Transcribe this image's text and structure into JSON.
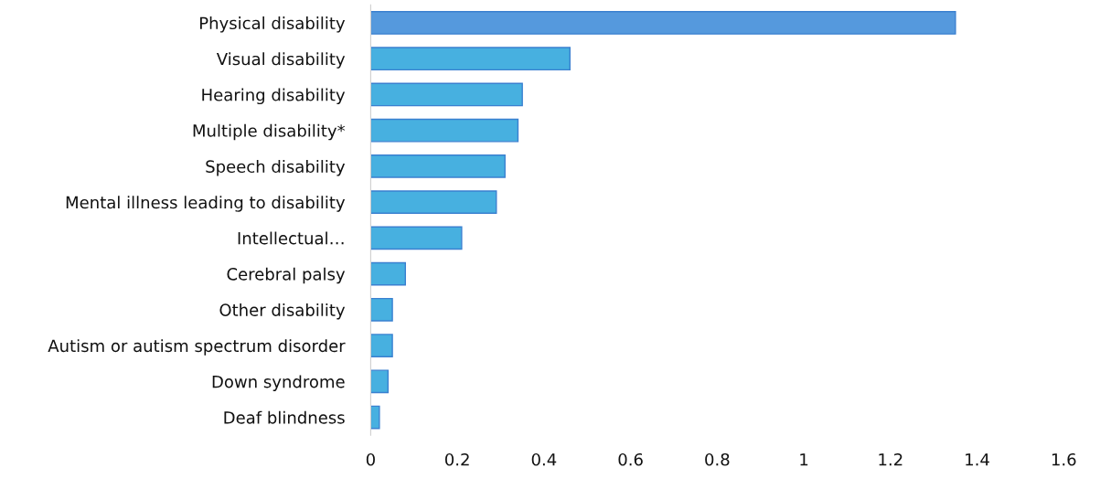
{
  "chart_data": {
    "type": "bar",
    "orientation": "horizontal",
    "categories": [
      "Physical disability",
      "Visual disability",
      "Hearing disability",
      "Multiple disability*",
      "Speech disability",
      "Mental illness leading to disability",
      "Intellectual…",
      "Cerebral palsy",
      "Other disability",
      "Autism or autism spectrum disorder",
      "Down syndrome",
      "Deaf blindness"
    ],
    "values": [
      1.35,
      0.46,
      0.35,
      0.34,
      0.31,
      0.29,
      0.21,
      0.08,
      0.05,
      0.05,
      0.04,
      0.02
    ],
    "colors": [
      "#5599dd",
      "#47b0e0",
      "#47b0e0",
      "#47b0e0",
      "#47b0e0",
      "#47b0e0",
      "#47b0e0",
      "#47b0e0",
      "#47b0e0",
      "#47b0e0",
      "#47b0e0",
      "#47b0e0"
    ],
    "xlim": [
      0,
      1.6
    ],
    "xticks": [
      0,
      0.2,
      0.4,
      0.6,
      0.8,
      1,
      1.2,
      1.4,
      1.6
    ],
    "grid": false,
    "legend": false
  }
}
